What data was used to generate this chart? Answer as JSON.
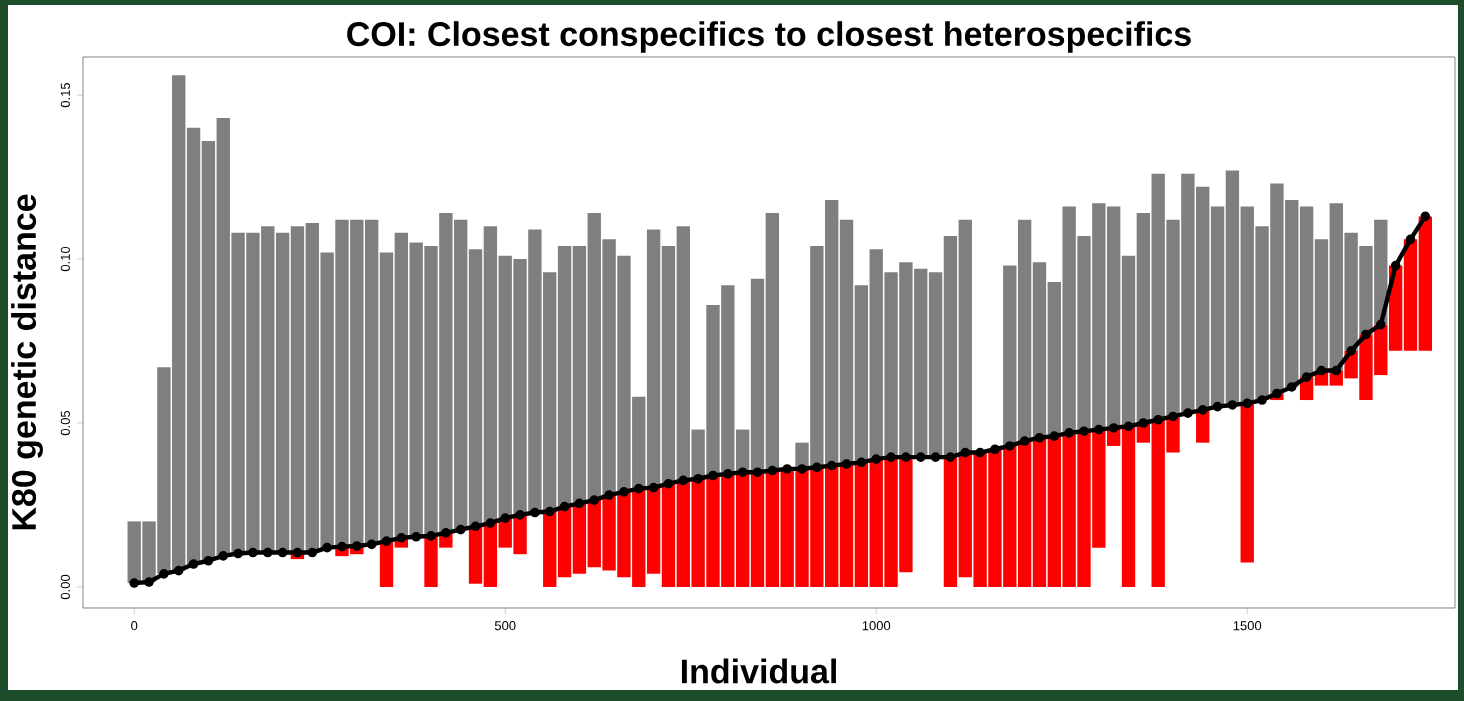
{
  "chart_data": {
    "type": "bar",
    "title": "COI: Closest conspecifics to closest heterospecifics",
    "xlabel": "Individual",
    "ylabel": "K80 genetic distance",
    "x": [
      0,
      20,
      40,
      60,
      80,
      100,
      120,
      140,
      160,
      180,
      200,
      220,
      240,
      260,
      280,
      300,
      320,
      340,
      360,
      380,
      400,
      420,
      440,
      460,
      480,
      500,
      520,
      540,
      560,
      580,
      600,
      620,
      640,
      660,
      680,
      700,
      720,
      740,
      760,
      780,
      800,
      820,
      840,
      860,
      880,
      900,
      920,
      940,
      960,
      980,
      1000,
      1020,
      1040,
      1060,
      1080,
      1100,
      1120,
      1140,
      1160,
      1180,
      1200,
      1220,
      1240,
      1260,
      1280,
      1300,
      1320,
      1340,
      1360,
      1380,
      1400,
      1420,
      1440,
      1460,
      1480,
      1500,
      1520,
      1540,
      1560,
      1580,
      1600,
      1620,
      1640,
      1660,
      1680,
      1700,
      1720,
      1740
    ],
    "series": [
      {
        "color": "#7f7f7f",
        "base": [
          0.0012,
          0.0015,
          0.004,
          0.005,
          0.007,
          0.008,
          0.0095,
          0.0102,
          0.0105,
          0.0105,
          0.0105,
          0.0105,
          0.0105,
          0.012,
          0.0123,
          0.0125,
          0.013,
          0.014,
          0.015,
          0.0153,
          0.0156,
          0.0165,
          0.0175,
          0.0185,
          0.0195,
          0.021,
          0.022,
          0.0227,
          0.023,
          0.0245,
          0.0255,
          0.0265,
          0.028,
          0.029,
          0.03,
          0.0303,
          0.0315,
          0.0325,
          0.033,
          0.034,
          0.0345,
          0.035,
          0.035,
          0.0355,
          null,
          0.036,
          0.0365,
          0.037,
          0.0375,
          0.038,
          0.039,
          0.0396,
          0.0396,
          0.0396,
          0.0396,
          0.0396,
          0.041,
          null,
          null,
          0.043,
          0.0445,
          0.0455,
          0.046,
          0.047,
          0.0475,
          0.048,
          0.0485,
          0.049,
          0.05,
          0.051,
          0.052,
          0.053,
          0.054,
          0.055,
          0.0555,
          0.056,
          0.057,
          0.059,
          0.061,
          0.064,
          0.066,
          0.066,
          0.072,
          0.077,
          0.08,
          null,
          null,
          null
        ],
        "values": [
          0.0188,
          0.0185,
          0.063,
          0.151,
          0.133,
          0.128,
          0.1335,
          0.0978,
          0.0975,
          0.0995,
          0.0975,
          0.0995,
          0.1005,
          0.09,
          0.0997,
          0.0995,
          0.099,
          0.088,
          0.093,
          0.0897,
          0.0884,
          0.0975,
          0.0945,
          0.0845,
          0.0905,
          0.08,
          0.078,
          0.0863,
          0.073,
          0.0795,
          0.0785,
          0.0875,
          0.078,
          0.072,
          0.028,
          0.0787,
          0.0725,
          0.0775,
          0.015,
          0.052,
          0.0575,
          0.013,
          0.059,
          0.0785,
          null,
          0.008,
          0.0675,
          0.081,
          0.0745,
          0.054,
          0.064,
          0.0564,
          0.0594,
          0.0574,
          0.0564,
          0.0674,
          0.071,
          null,
          null,
          0.055,
          0.0675,
          0.0535,
          0.047,
          0.069,
          0.0595,
          0.069,
          0.0675,
          0.052,
          0.064,
          0.075,
          0.06,
          0.073,
          0.068,
          0.061,
          0.0715,
          0.06,
          0.053,
          0.064,
          0.057,
          0.052,
          0.04,
          0.051,
          0.036,
          0.027,
          0.032,
          null,
          null,
          null
        ]
      },
      {
        "color": "#ff0000",
        "base": [
          null,
          null,
          null,
          null,
          null,
          null,
          null,
          null,
          null,
          null,
          null,
          0.0105,
          null,
          null,
          0.0123,
          0.0125,
          null,
          0.014,
          0.015,
          null,
          0.0156,
          0.0165,
          null,
          0.0185,
          0.0195,
          0.021,
          0.022,
          null,
          0.023,
          0.0245,
          0.0255,
          0.0265,
          0.028,
          0.029,
          0.03,
          0.0303,
          0.0315,
          0.0325,
          0.033,
          0.034,
          0.0345,
          0.035,
          0.035,
          0.0355,
          0.036,
          0.036,
          0.0365,
          0.037,
          0.0375,
          0.038,
          0.039,
          0.0396,
          0.0396,
          null,
          null,
          0.0396,
          0.041,
          0.041,
          0.042,
          0.043,
          0.0445,
          0.0455,
          0.046,
          0.047,
          0.0475,
          0.048,
          0.0485,
          0.049,
          0.05,
          0.051,
          0.052,
          null,
          0.054,
          null,
          null,
          0.056,
          null,
          0.059,
          null,
          0.064,
          0.066,
          0.066,
          0.072,
          0.077,
          0.08,
          0.098,
          0.106,
          0.113
        ],
        "values": [
          null,
          null,
          null,
          null,
          null,
          null,
          null,
          null,
          null,
          null,
          null,
          -0.002,
          null,
          null,
          -0.0029,
          -0.0025,
          null,
          -0.014,
          -0.003,
          null,
          -0.0156,
          -0.0045,
          null,
          -0.0175,
          -0.0195,
          -0.009,
          -0.012,
          null,
          -0.023,
          -0.0215,
          -0.0215,
          -0.0205,
          -0.023,
          -0.026,
          -0.03,
          -0.0263,
          -0.0315,
          -0.0325,
          -0.033,
          -0.034,
          -0.0345,
          -0.035,
          -0.035,
          -0.0355,
          -0.036,
          -0.036,
          -0.0365,
          -0.037,
          -0.0375,
          -0.038,
          -0.039,
          -0.0396,
          -0.0351,
          null,
          null,
          -0.0396,
          -0.038,
          -0.041,
          -0.042,
          -0.043,
          -0.0445,
          -0.0455,
          -0.046,
          -0.047,
          -0.0475,
          -0.036,
          -0.0055,
          -0.049,
          -0.006,
          -0.051,
          -0.011,
          null,
          -0.01,
          null,
          null,
          -0.0485,
          null,
          -0.002,
          null,
          -0.007,
          -0.0046,
          -0.0046,
          -0.0084,
          -0.02,
          -0.0154,
          -0.026,
          -0.034,
          -0.041
        ]
      },
      {
        "type": "line",
        "color": "#000000",
        "marker": "circle",
        "values": [
          0.0012,
          0.0015,
          0.004,
          0.005,
          0.007,
          0.008,
          0.0095,
          0.0102,
          0.0105,
          0.0105,
          0.0105,
          0.0105,
          0.0105,
          0.012,
          0.0123,
          0.0125,
          0.013,
          0.014,
          0.015,
          0.0153,
          0.0156,
          0.0165,
          0.0175,
          0.0185,
          0.0195,
          0.021,
          0.022,
          0.0227,
          0.023,
          0.0245,
          0.0255,
          0.0265,
          0.028,
          0.029,
          0.03,
          0.0303,
          0.0315,
          0.0325,
          0.033,
          0.034,
          0.0345,
          0.035,
          0.035,
          0.0355,
          0.036,
          0.036,
          0.0365,
          0.037,
          0.0375,
          0.038,
          0.039,
          0.0396,
          0.0396,
          0.0396,
          0.0396,
          0.0396,
          0.041,
          0.041,
          0.042,
          0.043,
          0.0445,
          0.0455,
          0.046,
          0.047,
          0.0475,
          0.048,
          0.0485,
          0.049,
          0.05,
          0.051,
          0.052,
          0.053,
          0.054,
          0.055,
          0.0555,
          0.056,
          0.057,
          0.059,
          0.061,
          0.064,
          0.066,
          0.066,
          0.072,
          0.077,
          0.08,
          0.098,
          0.106,
          0.113
        ]
      }
    ],
    "xlim": [
      -69,
      1780
    ],
    "ylim": [
      -0.0064,
      0.1616
    ],
    "xticks": [
      0,
      500,
      1000,
      1500
    ],
    "yticks": [
      {
        "value": 0,
        "label": "0.00"
      },
      {
        "value": 0.05,
        "label": "0.05"
      },
      {
        "value": 0.1,
        "label": "0.10"
      },
      {
        "value": 0.15,
        "label": "0.15"
      }
    ]
  }
}
